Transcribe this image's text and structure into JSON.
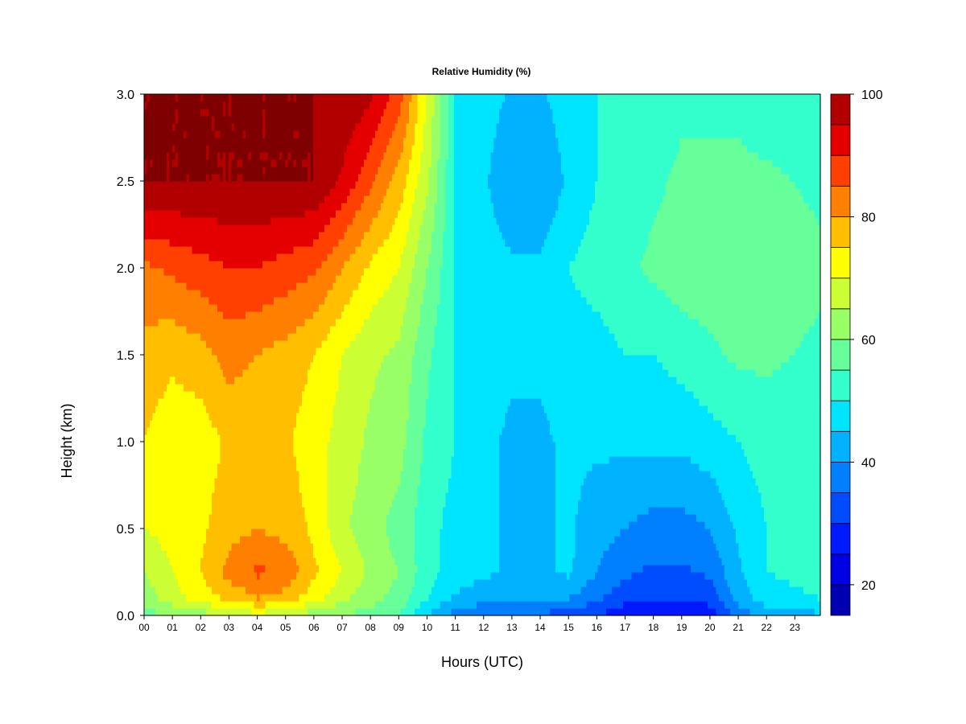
{
  "chart_data": {
    "type": "heatmap",
    "title": "Relative Humidity (%)",
    "xlabel": "Hours (UTC)",
    "ylabel": "Height (km)",
    "xlim": [
      0,
      23.9
    ],
    "ylim": [
      0.0,
      3.0
    ],
    "x_ticks": [
      "00",
      "01",
      "02",
      "03",
      "04",
      "05",
      "06",
      "07",
      "08",
      "09",
      "10",
      "11",
      "12",
      "13",
      "14",
      "15",
      "16",
      "17",
      "18",
      "19",
      "20",
      "21",
      "22",
      "23"
    ],
    "y_ticks": [
      "0.0",
      "0.5",
      "1.0",
      "1.5",
      "2.0",
      "2.5",
      "3.0"
    ],
    "colorbar": {
      "range": [
        15,
        100
      ],
      "ticks": [
        "20",
        "40",
        "60",
        "80",
        "100"
      ],
      "tick_values": [
        20,
        40,
        60,
        80,
        100
      ],
      "levels": [
        15,
        20,
        25,
        30,
        35,
        40,
        45,
        50,
        55,
        60,
        65,
        70,
        75,
        80,
        85,
        90,
        95,
        100
      ],
      "colors": [
        "#00007f",
        "#0000b2",
        "#0000e5",
        "#0019ff",
        "#004cff",
        "#007fff",
        "#00b2ff",
        "#00e5ff",
        "#33ffcc",
        "#66ff99",
        "#99ff66",
        "#ccff33",
        "#ffff00",
        "#ffbf00",
        "#ff8000",
        "#ff4000",
        "#e50000",
        "#b20000",
        "#7f0000"
      ]
    },
    "x_hours": [
      0,
      1,
      2,
      3,
      4,
      5,
      6,
      7,
      8,
      9,
      10,
      11,
      12,
      13,
      14,
      15,
      16,
      17,
      18,
      19,
      20,
      21,
      22,
      23.9
    ],
    "y_heights_km": [
      0.0,
      0.1,
      0.25,
      0.5,
      1.0,
      1.5,
      2.0,
      2.5,
      3.0
    ],
    "values": [
      [
        58,
        62,
        65,
        70,
        75,
        78,
        84,
        100,
        100
      ],
      [
        60,
        68,
        70,
        72,
        72,
        76,
        86,
        100,
        100
      ],
      [
        62,
        72,
        75,
        74,
        72,
        78,
        88,
        100,
        100
      ],
      [
        66,
        76,
        82,
        78,
        76,
        82,
        90,
        100,
        100
      ],
      [
        68,
        80,
        86,
        80,
        76,
        80,
        90,
        100,
        100
      ],
      [
        66,
        78,
        84,
        78,
        76,
        78,
        88,
        100,
        100
      ],
      [
        62,
        72,
        76,
        74,
        72,
        75,
        86,
        100,
        100
      ],
      [
        60,
        66,
        70,
        66,
        68,
        70,
        80,
        94,
        100
      ],
      [
        58,
        62,
        64,
        62,
        64,
        66,
        74,
        86,
        96
      ],
      [
        55,
        58,
        60,
        58,
        62,
        64,
        70,
        78,
        88
      ],
      [
        45,
        50,
        52,
        52,
        54,
        56,
        60,
        66,
        70
      ],
      [
        38,
        44,
        48,
        48,
        50,
        50,
        50,
        50,
        50
      ],
      [
        35,
        42,
        46,
        46,
        46,
        48,
        48,
        46,
        48
      ],
      [
        34,
        40,
        44,
        44,
        44,
        46,
        46,
        40,
        44
      ],
      [
        34,
        40,
        44,
        44,
        44,
        46,
        46,
        40,
        44
      ],
      [
        33,
        40,
        46,
        46,
        46,
        48,
        50,
        46,
        48
      ],
      [
        30,
        36,
        40,
        42,
        46,
        48,
        52,
        50,
        50
      ],
      [
        26,
        32,
        36,
        40,
        46,
        50,
        54,
        52,
        52
      ],
      [
        25,
        30,
        34,
        38,
        46,
        50,
        56,
        54,
        52
      ],
      [
        26,
        30,
        34,
        38,
        46,
        52,
        58,
        56,
        54
      ],
      [
        27,
        32,
        36,
        40,
        48,
        54,
        58,
        56,
        54
      ],
      [
        36,
        42,
        44,
        46,
        50,
        56,
        58,
        56,
        54
      ],
      [
        42,
        48,
        50,
        50,
        52,
        56,
        58,
        56,
        52
      ],
      [
        44,
        50,
        52,
        52,
        52,
        54,
        56,
        54,
        50
      ]
    ]
  }
}
